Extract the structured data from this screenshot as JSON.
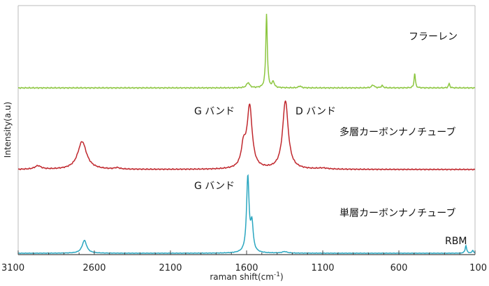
{
  "chart_data": {
    "type": "line",
    "xlabel": "raman shift(cm",
    "xlabel_sup": "-1",
    "xlabel_end": ")",
    "ylabel": "Intensity(a.u)",
    "xlim": [
      3100,
      100
    ],
    "x_reversed": true,
    "x_ticks": [
      "3100",
      "2600",
      "2100",
      "1600",
      "1100",
      "600",
      "100"
    ],
    "x_tick_values": [
      3100,
      2600,
      2100,
      1600,
      1100,
      600,
      100
    ],
    "y_ticks_visible": false,
    "grid": false,
    "series": [
      {
        "color": "#8cc63f",
        "baseline": 0.1,
        "peaks": [
          {
            "x": 1469,
            "height": 1.0,
            "width": 6
          },
          {
            "x": 1590,
            "height": 0.07,
            "width": 12
          },
          {
            "x": 1425,
            "height": 0.08,
            "width": 8
          },
          {
            "x": 1250,
            "height": 0.025,
            "width": 10
          },
          {
            "x": 770,
            "height": 0.04,
            "width": 10
          },
          {
            "x": 710,
            "height": 0.03,
            "width": 8
          },
          {
            "x": 496,
            "height": 0.2,
            "width": 5
          },
          {
            "x": 270,
            "height": 0.06,
            "width": 5
          }
        ]
      },
      {
        "color": "#c0272d",
        "baseline": 0.1,
        "peaks": [
          {
            "x": 2970,
            "height": 0.05,
            "width": 25
          },
          {
            "x": 2680,
            "height": 0.4,
            "width": 35
          },
          {
            "x": 2450,
            "height": 0.02,
            "width": 20
          },
          {
            "x": 1580,
            "height": 0.88,
            "width": 20
          },
          {
            "x": 1620,
            "height": 0.3,
            "width": 18
          },
          {
            "x": 1345,
            "height": 0.98,
            "width": 22
          },
          {
            "x": 1100,
            "height": 0.015,
            "width": 40
          }
        ]
      },
      {
        "color": "#2aa6c0",
        "baseline": 0.04,
        "peaks": [
          {
            "x": 2665,
            "height": 0.17,
            "width": 18
          },
          {
            "x": 1592,
            "height": 1.0,
            "width": 10
          },
          {
            "x": 1565,
            "height": 0.36,
            "width": 10
          },
          {
            "x": 1350,
            "height": 0.02,
            "width": 20
          },
          {
            "x": 160,
            "height": 0.1,
            "width": 6
          },
          {
            "x": 115,
            "height": 0.04,
            "width": 5
          }
        ]
      }
    ],
    "annotations": [
      {
        "text": "フラーレン"
      },
      {
        "text": "G バンド"
      },
      {
        "text": "D バンド"
      },
      {
        "text": "多層カーボンナノチューブ"
      },
      {
        "text": "G バンド"
      },
      {
        "text": "単層カーボンナノチューブ"
      },
      {
        "text": "RBM"
      }
    ]
  }
}
